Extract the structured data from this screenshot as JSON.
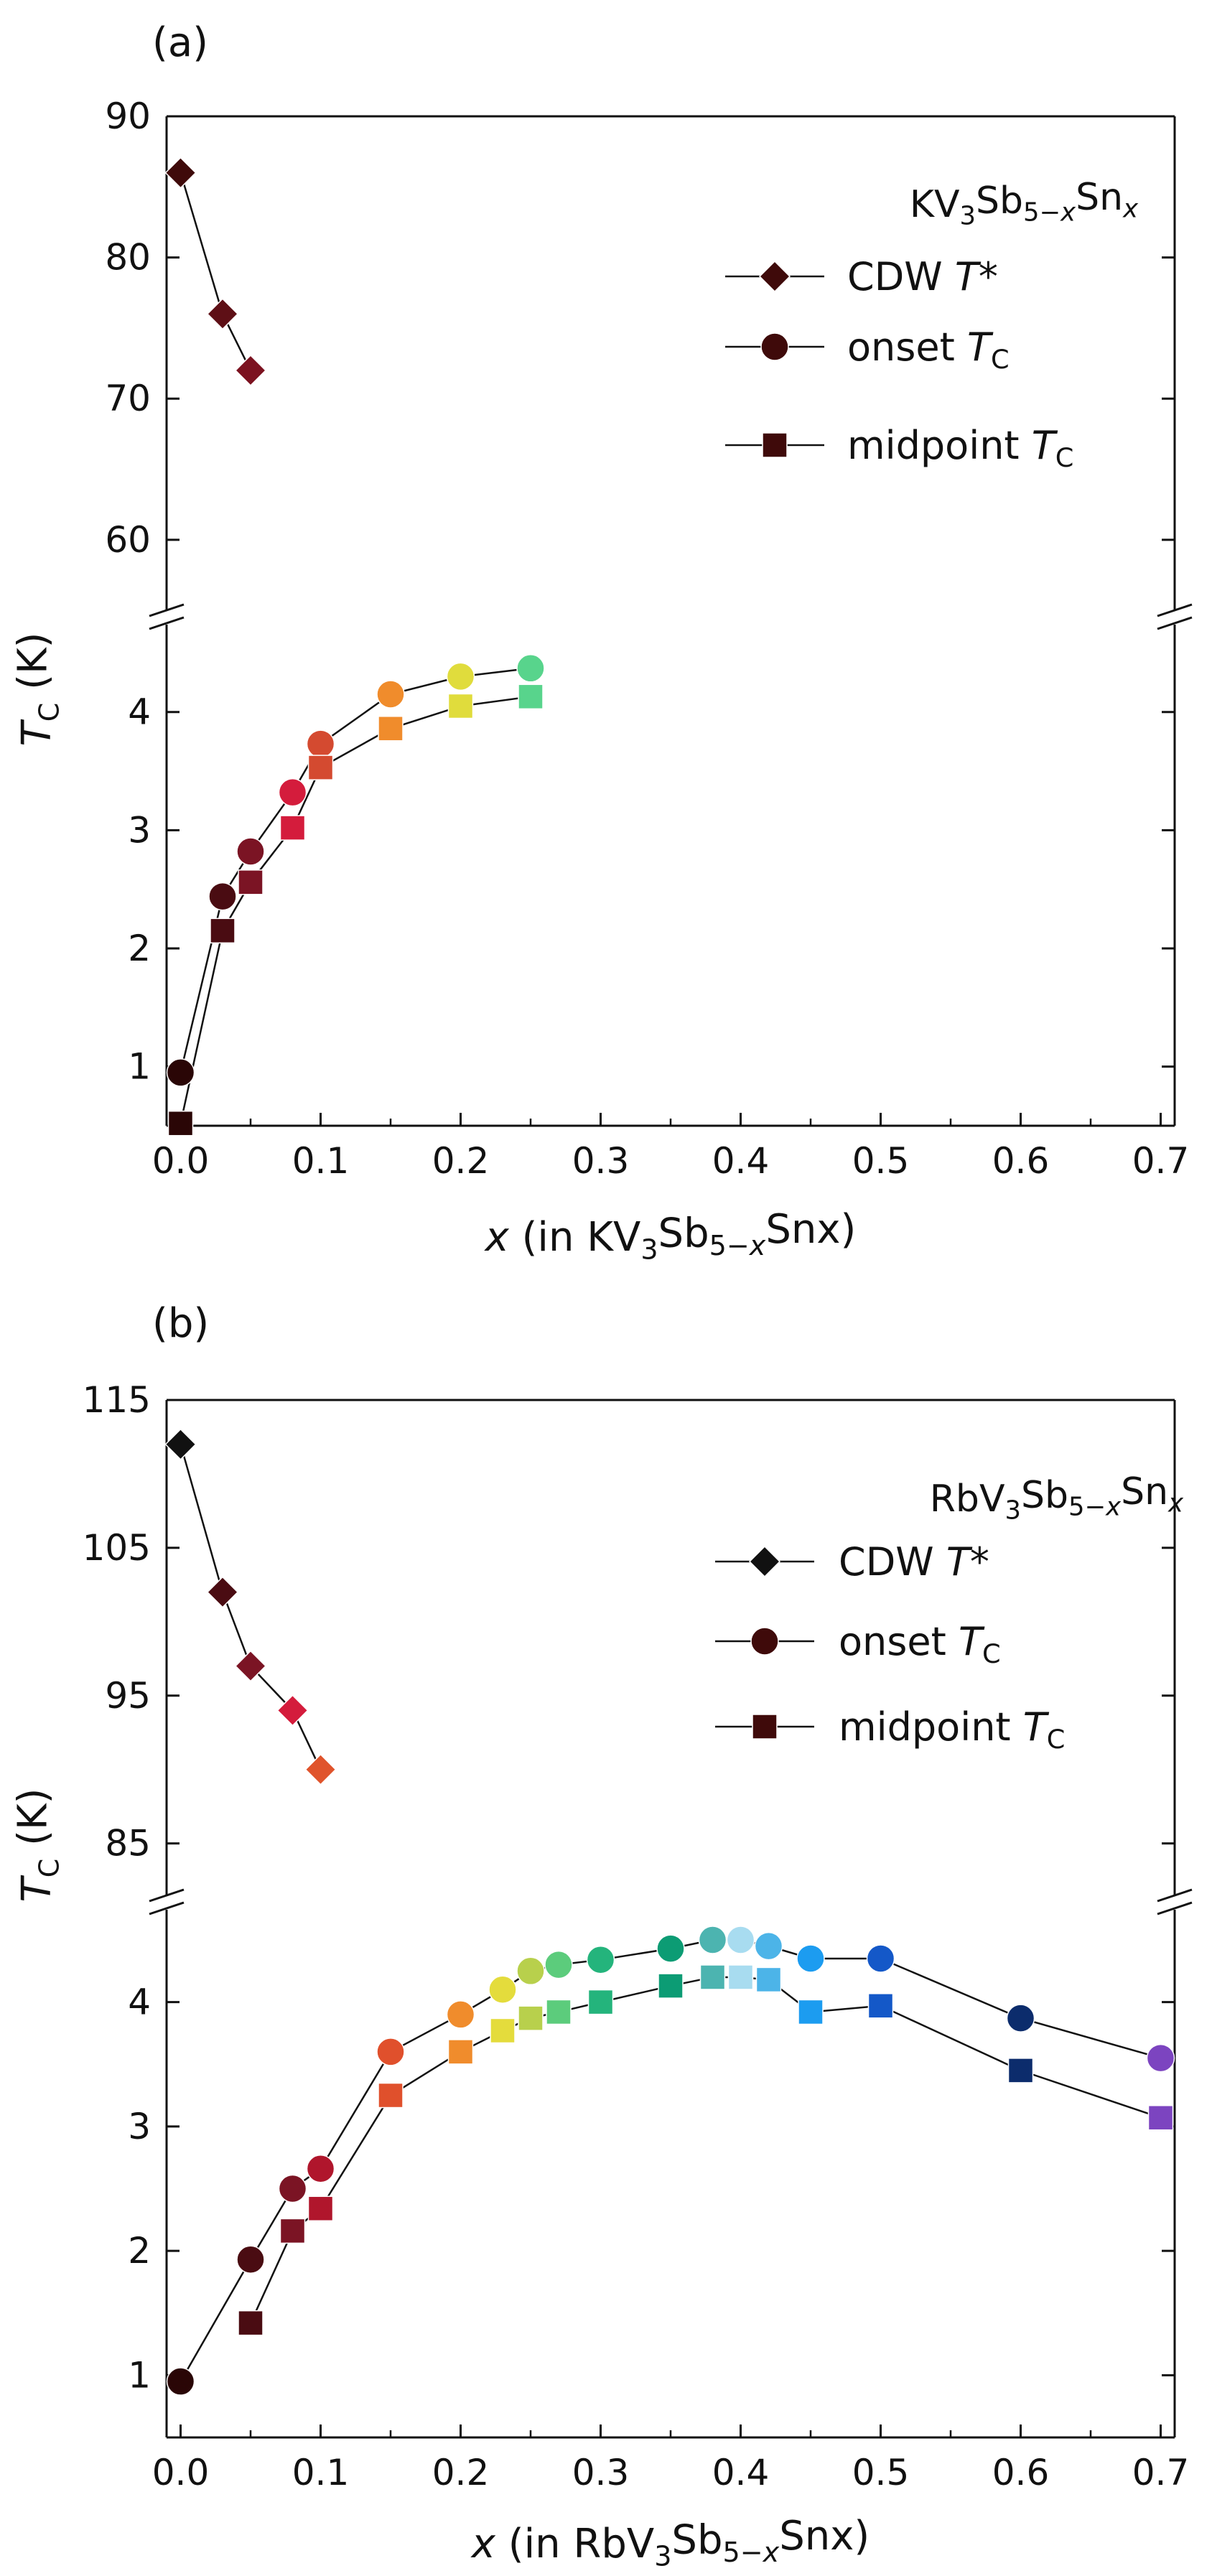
{
  "chart_data": [
    {
      "type": "scatter",
      "panel_label": "(a)",
      "compound": "KV3Sb5-xSnx",
      "xlabel": "x (in KV3Sb5-xSnx)",
      "ylabel": "TC (K)",
      "xlim": [
        -0.01,
        0.71
      ],
      "x_ticks": [
        "0.0",
        "0.1",
        "0.2",
        "0.3",
        "0.4",
        "0.5",
        "0.6",
        "0.7"
      ],
      "y_broken_axis": true,
      "y_upper_range": [
        54.5,
        90
      ],
      "y_upper_ticks": [
        "60",
        "70",
        "80",
        "90"
      ],
      "y_lower_range": [
        0.5,
        4.8
      ],
      "y_lower_ticks": [
        "1",
        "2",
        "3",
        "4"
      ],
      "grid": false,
      "legend": {
        "position": "top-right",
        "title": "KV3Sb5-xSnx",
        "entries": [
          "CDW T*",
          "onset TC",
          "midpoint TC"
        ]
      },
      "series": [
        {
          "name": "CDW T*",
          "marker": "diamond",
          "x": [
            0.0,
            0.03,
            0.05
          ],
          "y": [
            86,
            76,
            72
          ],
          "colors": [
            "#3f0a0a",
            "#5e0f16",
            "#7c1220"
          ]
        },
        {
          "name": "onset TC",
          "marker": "circle",
          "x": [
            0.0,
            0.03,
            0.05,
            0.08,
            0.1,
            0.15,
            0.2,
            0.25
          ],
          "y": [
            0.95,
            2.44,
            2.82,
            3.32,
            3.73,
            4.15,
            4.3,
            4.37
          ],
          "colors": [
            "#2a0606",
            "#4a0c12",
            "#7b1424",
            "#d41c3c",
            "#d44a30",
            "#f08c2c",
            "#e0dc3c",
            "#58d48c"
          ]
        },
        {
          "name": "midpoint TC",
          "marker": "square",
          "x": [
            0.0,
            0.03,
            0.05,
            0.08,
            0.1,
            0.15,
            0.2,
            0.25
          ],
          "y": [
            0.52,
            2.15,
            2.56,
            3.02,
            3.53,
            3.86,
            4.05,
            4.13
          ],
          "colors": [
            "#2a0606",
            "#4a0c12",
            "#7b1424",
            "#d41c3c",
            "#d44a30",
            "#f08c2c",
            "#e0dc3c",
            "#58d48c"
          ]
        }
      ]
    },
    {
      "type": "scatter",
      "panel_label": "(b)",
      "compound": "RbV3Sb5-xSnx",
      "xlabel": "x (in RbV3Sb5-xSnx)",
      "ylabel": "TC (K)",
      "xlim": [
        -0.01,
        0.71
      ],
      "x_ticks": [
        "0.0",
        "0.1",
        "0.2",
        "0.3",
        "0.4",
        "0.5",
        "0.6",
        "0.7"
      ],
      "y_broken_axis": true,
      "y_upper_range": [
        81,
        115
      ],
      "y_upper_ticks": [
        "85",
        "95",
        "105",
        "115"
      ],
      "y_lower_range": [
        0.5,
        4.8
      ],
      "y_lower_ticks": [
        "1",
        "2",
        "3",
        "4"
      ],
      "grid": false,
      "legend": {
        "position": "top-right",
        "title": "RbV3Sb5-xSnx",
        "entries": [
          "CDW T*",
          "onset TC",
          "midpoint TC"
        ]
      },
      "series": [
        {
          "name": "CDW T*",
          "marker": "diamond",
          "x": [
            0.0,
            0.03,
            0.05,
            0.08,
            0.1
          ],
          "y": [
            112,
            102,
            97,
            94,
            90
          ],
          "colors": [
            "#111111",
            "#4a0c12",
            "#7b1424",
            "#d41c3c",
            "#e0542c"
          ]
        },
        {
          "name": "onset TC",
          "marker": "circle",
          "x": [
            0.0,
            0.05,
            0.08,
            0.1,
            0.15,
            0.2,
            0.23,
            0.25,
            0.27,
            0.3,
            0.35,
            0.38,
            0.4,
            0.42,
            0.45,
            0.5,
            0.6,
            0.7
          ],
          "y": [
            0.95,
            1.93,
            2.5,
            2.66,
            3.6,
            3.9,
            4.1,
            4.25,
            4.3,
            4.34,
            4.43,
            4.5,
            4.5,
            4.45,
            4.35,
            4.35,
            3.87,
            3.55
          ],
          "colors": [
            "#2a0606",
            "#4a0c12",
            "#7b1424",
            "#b0162c",
            "#e0502c",
            "#f08c2c",
            "#e4dc3c",
            "#b8d04c",
            "#5ccc7c",
            "#24b47c",
            "#0c9c74",
            "#4cb4b0",
            "#a8dcf0",
            "#4cb4e8",
            "#1c9cf0",
            "#1458c8",
            "#0c2c6c",
            "#7c44c0"
          ]
        },
        {
          "name": "midpoint TC",
          "marker": "square",
          "x": [
            0.05,
            0.08,
            0.1,
            0.15,
            0.2,
            0.23,
            0.25,
            0.27,
            0.3,
            0.35,
            0.38,
            0.4,
            0.42,
            0.45,
            0.5,
            0.6,
            0.7
          ],
          "y": [
            1.42,
            2.16,
            2.34,
            3.25,
            3.6,
            3.77,
            3.87,
            3.92,
            4.0,
            4.13,
            4.2,
            4.2,
            4.18,
            3.92,
            3.97,
            3.45,
            3.07
          ],
          "colors": [
            "#4a0c12",
            "#7b1424",
            "#b0162c",
            "#e0502c",
            "#f08c2c",
            "#e4dc3c",
            "#b8d04c",
            "#5ccc7c",
            "#24b47c",
            "#0c9c74",
            "#4cb4b0",
            "#a8dcf0",
            "#4cb4e8",
            "#1c9cf0",
            "#1458c8",
            "#0c2c6c",
            "#7c44c0"
          ]
        }
      ]
    }
  ]
}
